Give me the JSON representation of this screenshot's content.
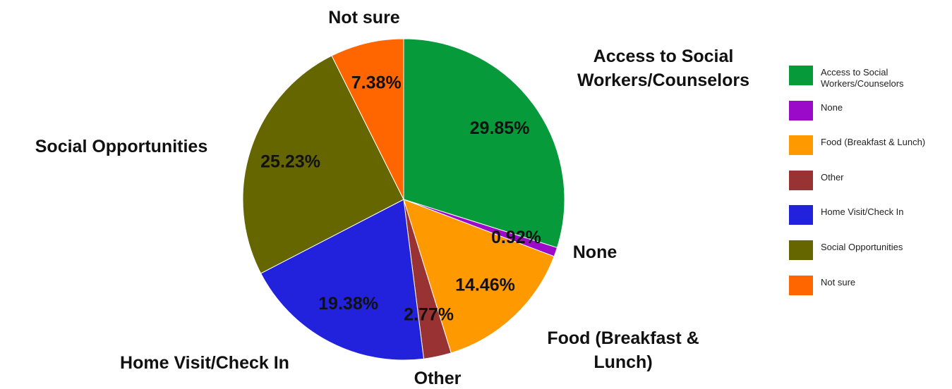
{
  "chart_data": {
    "type": "pie",
    "categories": [
      "Access to Social Workers/Counselors",
      "None",
      "Food (Breakfast & Lunch)",
      "Other",
      "Home Visit/Check In",
      "Social Opportunities",
      "Not sure"
    ],
    "values": [
      29.85,
      0.92,
      14.46,
      2.77,
      19.38,
      25.23,
      7.38
    ],
    "value_labels": [
      "29.85%",
      "0.92%",
      "14.46%",
      "2.77%",
      "19.38%",
      "25.23%",
      "7.38%"
    ],
    "colors": [
      "#069a3a",
      "#9a0ac8",
      "#ff9900",
      "#993333",
      "#2222dd",
      "#666600",
      "#ff6600"
    ],
    "legend": "right"
  }
}
